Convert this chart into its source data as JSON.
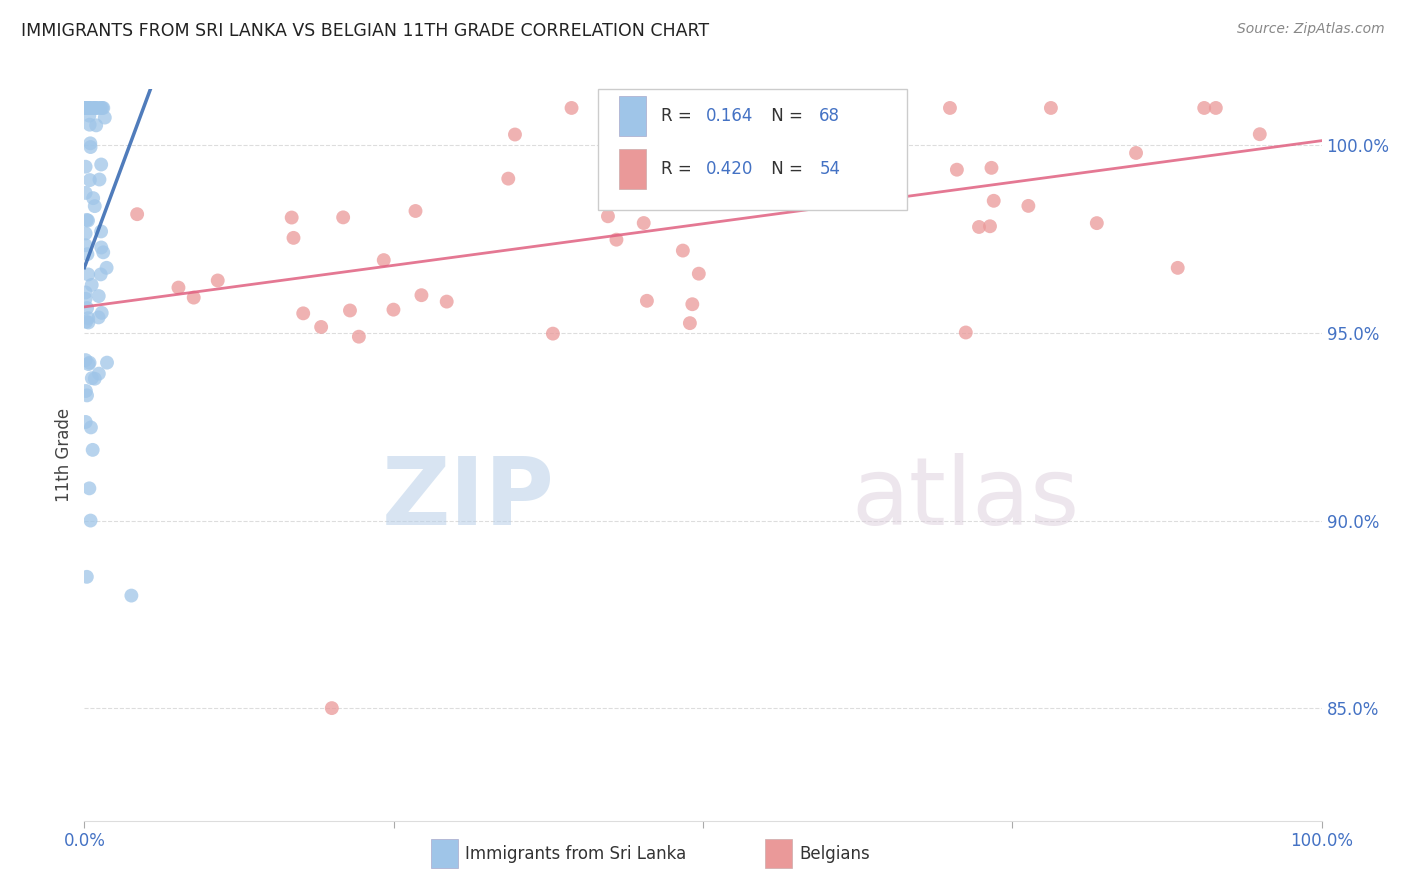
{
  "title": "IMMIGRANTS FROM SRI LANKA VS BELGIAN 11TH GRADE CORRELATION CHART",
  "source": "Source: ZipAtlas.com",
  "ylabel": "11th Grade",
  "right_yticks": [
    85.0,
    90.0,
    95.0,
    100.0
  ],
  "legend_blue_label": "Immigrants from Sri Lanka",
  "legend_pink_label": "Belgians",
  "R_blue": 0.164,
  "N_blue": 68,
  "R_pink": 0.42,
  "N_pink": 54,
  "blue_color": "#9fc5e8",
  "pink_color": "#ea9999",
  "blue_line_color": "#3d6eb4",
  "pink_line_color": "#e06080",
  "watermark_zip": "ZIP",
  "watermark_atlas": "atlas",
  "ylim_min": 82.0,
  "ylim_max": 101.5,
  "xlim_min": 0.0,
  "xlim_max": 1.0
}
